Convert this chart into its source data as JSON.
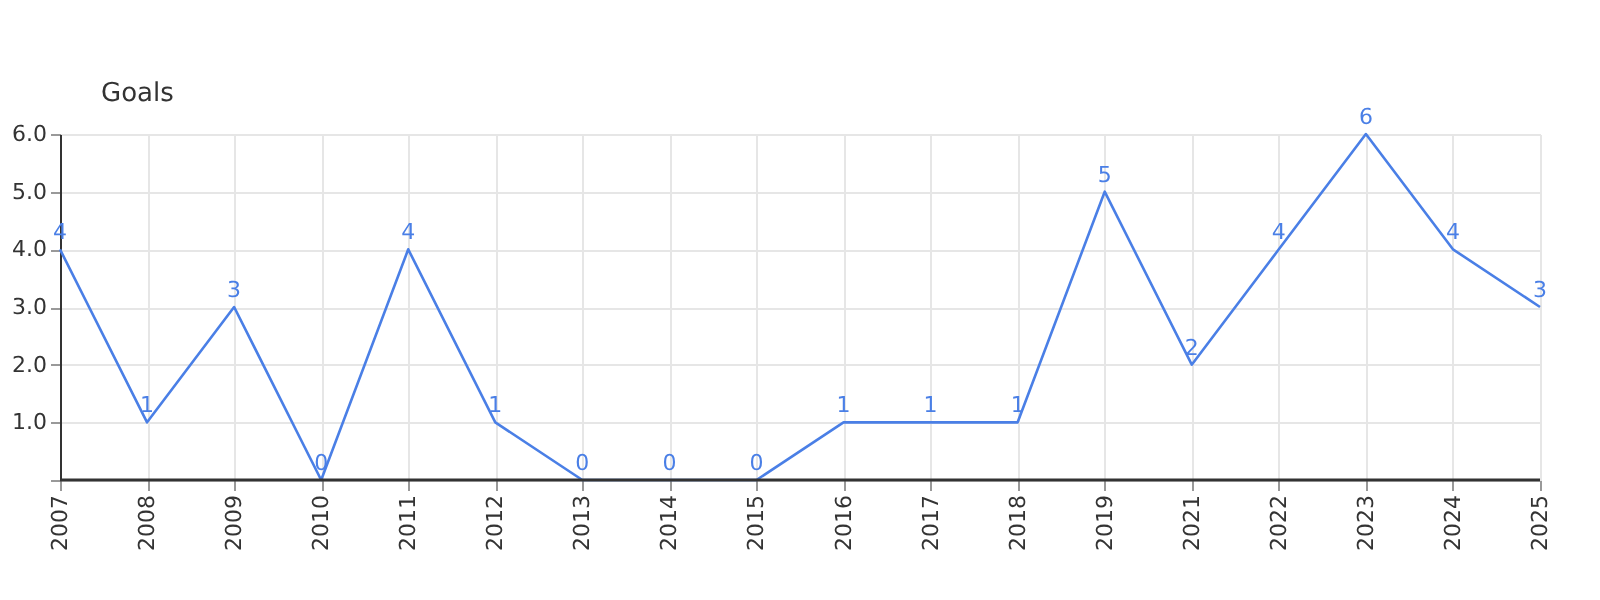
{
  "chart_data": {
    "type": "line",
    "ylabel": "Goals",
    "categories": [
      "2007",
      "2008",
      "2009",
      "2010",
      "2011",
      "2012",
      "2013",
      "2014",
      "2015",
      "2016",
      "2017",
      "2018",
      "2019",
      "2021",
      "2022",
      "2023",
      "2024",
      "2025"
    ],
    "series": [
      {
        "color": "#4a7fe6",
        "values": [
          4,
          1,
          3,
          0,
          4,
          1,
          0,
          0,
          0,
          1,
          1,
          1,
          5,
          2,
          4,
          6,
          4,
          3
        ]
      }
    ],
    "ylim": [
      0,
      6
    ],
    "yticks": [
      {
        "value": 0,
        "label": null
      },
      {
        "value": 1,
        "label": "1.0"
      },
      {
        "value": 2,
        "label": "2.0"
      },
      {
        "value": 3,
        "label": "3.0"
      },
      {
        "value": 4,
        "label": "4.0"
      },
      {
        "value": 5,
        "label": "5.0"
      },
      {
        "value": 6,
        "label": "6.0"
      }
    ],
    "grid": true,
    "data_labels": true,
    "marker": "none",
    "line_style": "solid"
  }
}
